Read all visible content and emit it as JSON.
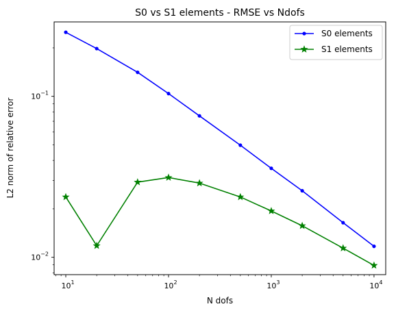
{
  "chart_data": {
    "type": "line",
    "title": "S0 vs S1 elements - RMSE vs Ndofs",
    "xlabel": "N dofs",
    "ylabel": "L2 norm of relative error",
    "xscale": "log",
    "yscale": "log",
    "xlim": [
      7.7,
      13000
    ],
    "ylim": [
      0.0078,
      0.29
    ],
    "grid": false,
    "legend": "top-right",
    "x": [
      10,
      20,
      50,
      100,
      200,
      500,
      1000,
      2000,
      5000,
      10000
    ],
    "x_ticks": [
      {
        "value": 10,
        "base": "10",
        "exp": "1"
      },
      {
        "value": 100,
        "base": "10",
        "exp": "2"
      },
      {
        "value": 1000,
        "base": "10",
        "exp": "3"
      },
      {
        "value": 10000,
        "base": "10",
        "exp": "4"
      }
    ],
    "y_ticks": [
      {
        "value": 0.01,
        "base": "10",
        "exp": "−2"
      },
      {
        "value": 0.1,
        "base": "10",
        "exp": "−1"
      }
    ],
    "series": [
      {
        "name": "S0 elements",
        "color": "#0000ff",
        "marker": "dot",
        "values": [
          0.25,
          0.198,
          0.141,
          0.104,
          0.0756,
          0.0497,
          0.0357,
          0.0259,
          0.0164,
          0.0117
        ]
      },
      {
        "name": "S1 elements",
        "color": "#008000",
        "marker": "star",
        "values": [
          0.0237,
          0.0118,
          0.0293,
          0.0313,
          0.0289,
          0.0237,
          0.0194,
          0.0157,
          0.0114,
          0.0089
        ]
      }
    ]
  }
}
